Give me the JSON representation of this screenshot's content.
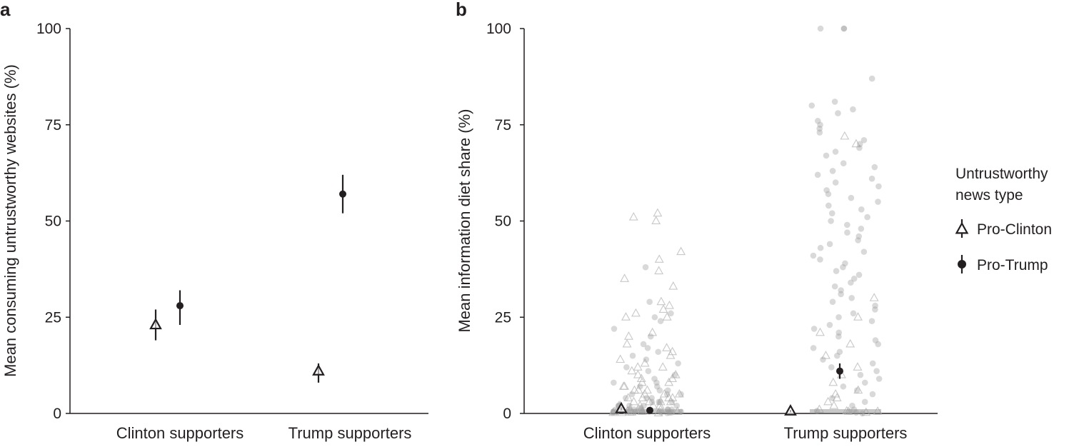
{
  "chart_data": [
    {
      "type": "scatter",
      "panel": "a",
      "xlabel": "",
      "ylabel": "Mean consuming untrustworthy websites (%)",
      "ylim": [
        0,
        100
      ],
      "yticks": [
        0,
        25,
        50,
        75,
        100
      ],
      "categories": [
        "Clinton supporters",
        "Trump supporters"
      ],
      "grid": false,
      "series": [
        {
          "name": "Pro-Clinton",
          "marker": "triangle-open",
          "values": [
            23,
            11
          ],
          "ci_low": [
            19,
            8
          ],
          "ci_high": [
            27,
            13
          ]
        },
        {
          "name": "Pro-Trump",
          "marker": "circle-filled",
          "values": [
            28,
            57
          ],
          "ci_low": [
            23,
            52
          ],
          "ci_high": [
            32,
            62
          ]
        }
      ]
    },
    {
      "type": "scatter",
      "panel": "b",
      "xlabel": "",
      "ylabel": "Mean information diet share (%)",
      "ylim": [
        0,
        100
      ],
      "yticks": [
        0,
        25,
        50,
        75,
        100
      ],
      "categories": [
        "Clinton supporters",
        "Trump supporters"
      ],
      "grid": false,
      "legend": {
        "title": "Untrustworthy news type",
        "position": "right"
      },
      "series": [
        {
          "name": "Pro-Clinton",
          "marker": "triangle-open",
          "values": [
            1.2,
            0.6
          ],
          "ci_low": [
            0.8,
            0.3
          ],
          "ci_high": [
            1.6,
            0.9
          ]
        },
        {
          "name": "Pro-Trump",
          "marker": "circle-filled",
          "values": [
            0.8,
            11
          ],
          "ci_low": [
            0.6,
            9
          ],
          "ci_high": [
            1.0,
            13
          ]
        }
      ],
      "individual_points": {
        "Clinton supporters": {
          "Pro-Clinton": [
            52,
            51,
            50,
            42,
            40,
            37,
            35,
            33,
            29,
            28,
            27,
            26,
            25,
            25,
            21,
            20,
            18,
            17,
            16,
            15,
            14,
            13,
            12,
            12,
            11,
            10,
            10,
            9,
            9,
            8,
            8,
            7,
            7,
            6,
            6,
            6,
            5,
            5,
            5,
            4,
            4,
            4,
            4,
            3,
            3,
            3,
            3,
            2,
            2,
            2,
            2,
            2,
            1,
            1,
            1,
            1,
            1,
            0.5,
            0.5,
            0.5,
            0.3,
            0.2,
            0.1,
            0,
            0,
            0
          ],
          "Pro-Trump": [
            38,
            29,
            26,
            25,
            24,
            22,
            20,
            18,
            17,
            16,
            15,
            14,
            13,
            12,
            11,
            10,
            9,
            8,
            8,
            7,
            7,
            6,
            6,
            5,
            5,
            5,
            4,
            4,
            4,
            3,
            3,
            3,
            3,
            2,
            2,
            2,
            2,
            2,
            1,
            1,
            1,
            1,
            1,
            1,
            0.5,
            0.5,
            0.5,
            0.3,
            0.2,
            0.1,
            0,
            0,
            0,
            0,
            0
          ]
        },
        "Trump supporters": {
          "Pro-Clinton": [
            72,
            70,
            30,
            25,
            21,
            18,
            15,
            12,
            10,
            8,
            6,
            5,
            4,
            3,
            2,
            1,
            0.5,
            0,
            0,
            0
          ],
          "Pro-Trump": [
            100,
            100,
            100,
            87,
            81,
            80,
            79,
            78,
            76,
            75,
            74,
            73,
            71,
            70,
            69,
            68,
            67,
            65,
            64,
            63,
            62,
            61,
            60,
            59,
            58,
            57,
            56,
            55,
            54,
            53,
            52,
            51,
            50,
            49,
            48,
            47,
            46,
            45,
            44,
            43,
            42,
            41,
            40,
            39,
            38,
            37,
            36,
            35,
            34,
            33,
            32,
            31,
            30,
            29,
            28,
            27,
            26,
            25,
            24,
            23,
            22,
            21,
            20,
            19,
            18,
            17,
            16,
            15,
            14,
            13,
            12,
            11,
            10,
            9,
            8,
            7,
            6,
            5,
            4,
            3,
            2,
            1,
            0.5,
            0,
            0,
            0
          ]
        }
      }
    }
  ]
}
